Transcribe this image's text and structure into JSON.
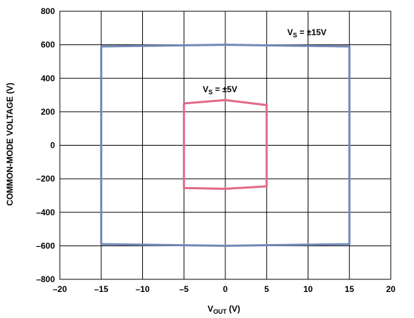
{
  "chart_data": {
    "type": "line",
    "x_ticks": [
      -20,
      -15,
      -10,
      -5,
      0,
      5,
      10,
      15,
      20
    ],
    "y_ticks": [
      -800,
      -600,
      -400,
      -200,
      0,
      200,
      400,
      600,
      800
    ],
    "x_tick_labels": [
      "–20",
      "–15",
      "–10",
      "–5",
      "0",
      "5",
      "10",
      "15",
      "20"
    ],
    "y_tick_labels": [
      "–800",
      "–600",
      "–400",
      "–200",
      "0",
      "200",
      "400",
      "600",
      "800"
    ],
    "xlim": [
      -20,
      20
    ],
    "ylim": [
      -800,
      800
    ],
    "grid": true,
    "xlabel": {
      "main": "V",
      "sub": "OUT",
      "unit": " (V)"
    },
    "ylabel": "COMMON-MODE VOLTAGE (V)",
    "series": [
      {
        "label_main": "V",
        "label_sub": "S",
        "label_rest": " = ±15V",
        "color": "#7088b8",
        "points": [
          [
            -15,
            590
          ],
          [
            0,
            600
          ],
          [
            15,
            590
          ],
          [
            15,
            -590
          ],
          [
            0,
            -600
          ],
          [
            -15,
            -590
          ],
          [
            -15,
            590
          ]
        ]
      },
      {
        "label_main": "V",
        "label_sub": "S",
        "label_rest": " = ±5V",
        "color": "#e06a86",
        "points": [
          [
            -5,
            250
          ],
          [
            0,
            270
          ],
          [
            5,
            240
          ],
          [
            5,
            -245
          ],
          [
            0,
            -260
          ],
          [
            -5,
            -255
          ],
          [
            -5,
            250
          ]
        ]
      }
    ]
  },
  "figure_id": "11118-110"
}
